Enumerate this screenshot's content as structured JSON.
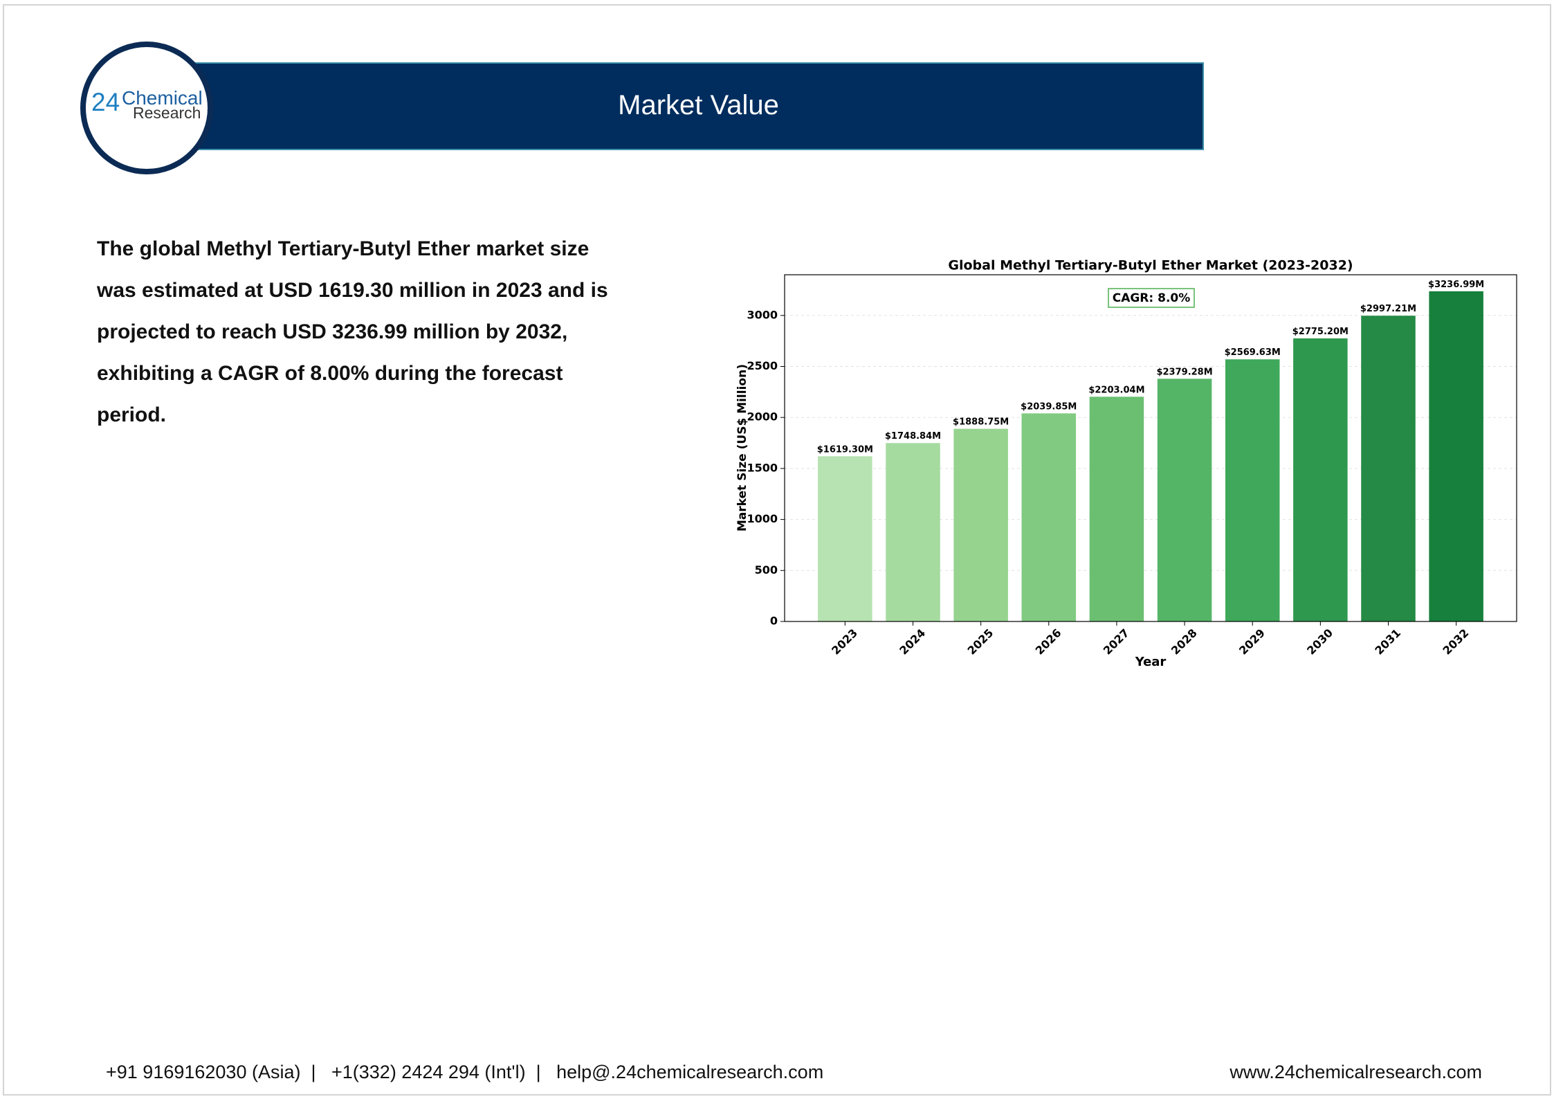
{
  "header": {
    "title": "Market Value"
  },
  "logo": {
    "number": "24",
    "name": "Chemical",
    "sub": "Research"
  },
  "body": {
    "paragraph": "The global Methyl Tertiary-Butyl Ether market size was estimated at USD 1619.30 million in 2023 and is projected to reach USD 3236.99 million by 2032, exhibiting a CAGR of 8.00% during the forecast period."
  },
  "chart_data": {
    "type": "bar",
    "title": "Global Methyl Tertiary-Butyl Ether Market (2023-2032)",
    "x_label": "Year",
    "y_label": "Market Size (US$ Million)",
    "annotation": "CAGR: 8.0%",
    "categories": [
      "2023",
      "2024",
      "2025",
      "2026",
      "2027",
      "2028",
      "2029",
      "2030",
      "2031",
      "2032"
    ],
    "values": [
      1619.3,
      1748.84,
      1888.75,
      2039.85,
      2203.04,
      2379.28,
      2569.63,
      2775.2,
      2997.21,
      3236.99
    ],
    "value_labels": [
      "$1619.30M",
      "$1748.84M",
      "$1888.75M",
      "$2039.85M",
      "$2203.04M",
      "$2379.28M",
      "$2569.63M",
      "$2775.20M",
      "$2997.21M",
      "$3236.99M"
    ],
    "colors": [
      "#b7e2b1",
      "#a6dba0",
      "#95d38f",
      "#81ca81",
      "#6bbf71",
      "#55b567",
      "#3fa85b",
      "#2f984f",
      "#248a45",
      "#17803c"
    ],
    "ylim": [
      0,
      3398.8
    ],
    "yticks": [
      0,
      500,
      1000,
      1500,
      2000,
      2500,
      3000
    ],
    "grid": true
  },
  "footer": {
    "contact": "+91 9169162030 (Asia)  |   +1(332) 2424 294 (Int'l)  |   help@.24chemicalresearch.com",
    "website": "www.24chemicalresearch.com"
  }
}
